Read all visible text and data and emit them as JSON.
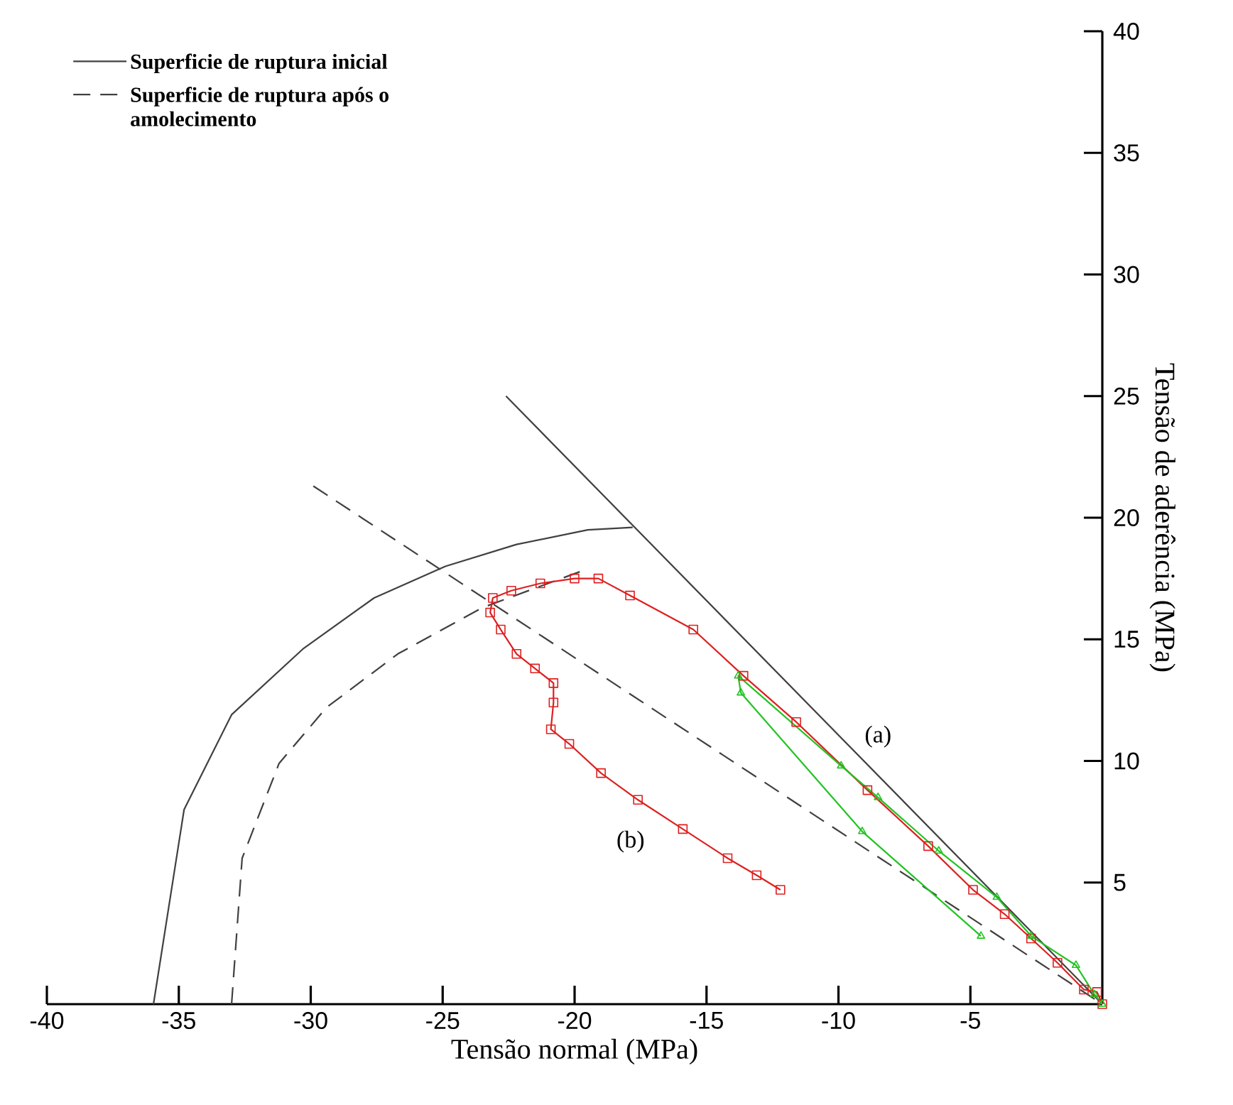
{
  "chart_data": {
    "type": "line",
    "xlabel": "Tensão normal (MPa)",
    "ylabel": "Tensão de aderência (MPa)",
    "xlim": [
      -40,
      0
    ],
    "ylim": [
      0,
      40
    ],
    "xticks": [
      -40,
      -35,
      -30,
      -25,
      -20,
      -15,
      -10,
      -5
    ],
    "yticks": [
      5,
      10,
      15,
      20,
      25,
      30,
      35,
      40
    ],
    "legend": "top left",
    "series": [
      {
        "name": "Superficie de ruptura inicial",
        "color": "#404040",
        "marker": "none",
        "line_style": "solid",
        "x": [
          -35.96,
          -34.8,
          -33.0,
          -30.3,
          -27.6,
          -24.9,
          -22.2,
          -19.5,
          -17.8,
          -20.0,
          -22.6,
          0
        ],
        "values": [
          0,
          8.0,
          11.9,
          14.6,
          16.7,
          18.0,
          18.9,
          19.5,
          19.6,
          null,
          25.0,
          0
        ]
      },
      {
        "name": "Superficie de ruptura após o amolecimento",
        "color": "#404040",
        "marker": "none",
        "line_style": "dashed",
        "x": [
          -33.0,
          -32.6,
          -31.2,
          -29.4,
          -26.7,
          -23.5,
          -19.5,
          -25.0,
          -29.9,
          0
        ],
        "values": [
          0,
          6.0,
          9.9,
          12.2,
          14.4,
          16.3,
          17.9,
          null,
          21.3,
          0
        ]
      },
      {
        "color": "#dd2020",
        "marker": "square",
        "line_style": "solid",
        "x": [
          0,
          -0.2,
          -0.7,
          -1.7,
          -2.7,
          -3.7,
          -4.9,
          -6.6,
          -8.9,
          -11.6,
          -13.6,
          -15.5,
          -17.9,
          -19.1,
          -20.0,
          -21.3,
          -22.4,
          -23.1,
          -23.2,
          -22.8,
          -22.2,
          -21.5,
          -20.8,
          -20.8,
          -20.9,
          -20.2,
          -19.0,
          -17.6,
          -15.9,
          -14.2,
          -13.1,
          -12.2
        ],
        "values": [
          0,
          0.5,
          0.6,
          1.7,
          2.7,
          3.7,
          4.7,
          6.5,
          8.8,
          11.6,
          13.5,
          15.4,
          16.8,
          17.5,
          17.5,
          17.3,
          17.0,
          16.7,
          16.1,
          15.4,
          14.4,
          13.8,
          13.2,
          12.4,
          11.3,
          10.7,
          9.5,
          8.4,
          7.2,
          6.0,
          5.3,
          4.7
        ]
      },
      {
        "color": "#22c322",
        "marker": "triangle",
        "line_style": "solid",
        "x": [
          0,
          -0.3,
          -1.0,
          -2.7,
          -4.0,
          -6.2,
          -8.5,
          -9.9,
          -13.8,
          -13.7,
          -9.1,
          -4.6
        ],
        "values": [
          0,
          0.4,
          1.6,
          2.8,
          4.4,
          6.3,
          8.5,
          9.8,
          13.5,
          12.8,
          7.1,
          2.8
        ]
      }
    ],
    "annotations": [
      "(a)",
      "(b)"
    ]
  }
}
